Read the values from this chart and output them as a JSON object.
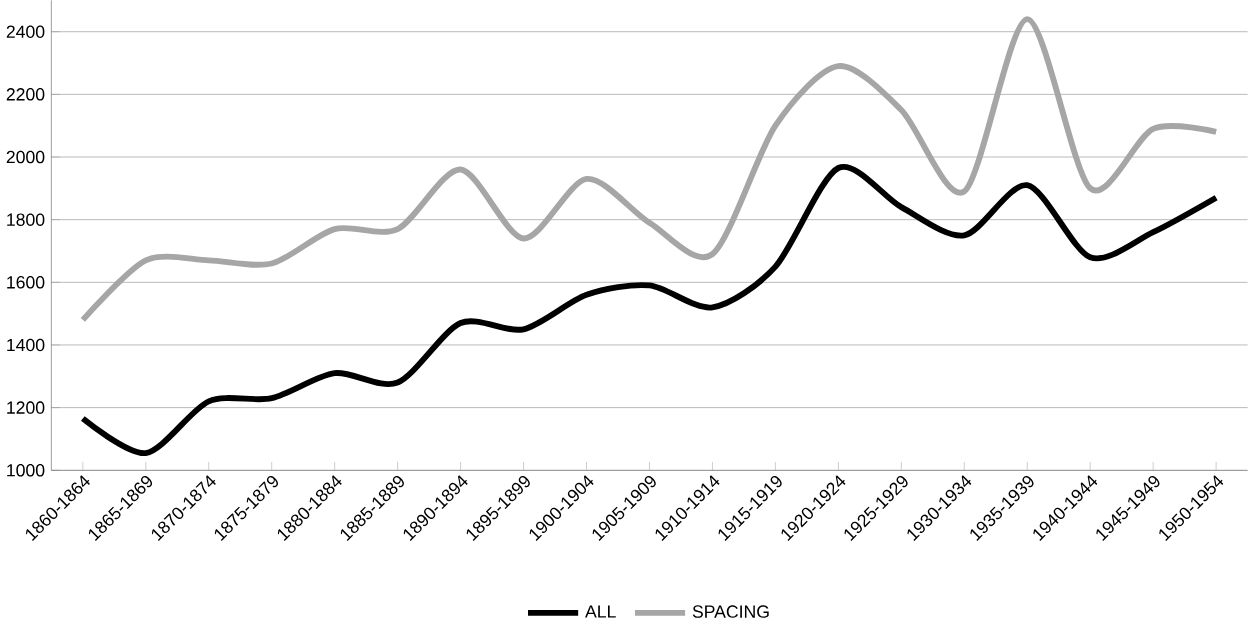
{
  "chart_data": {
    "type": "line",
    "categories": [
      "1860-1864",
      "1865-1869",
      "1870-1874",
      "1875-1879",
      "1880-1884",
      "1885-1889",
      "1890-1894",
      "1895-1899",
      "1900-1904",
      "1905-1909",
      "1910-1914",
      "1915-1919",
      "1920-1924",
      "1925-1929",
      "1930-1934",
      "1935-1939",
      "1940-1944",
      "1945-1949",
      "1950-1954"
    ],
    "series": [
      {
        "name": "ALL",
        "color": "#000000",
        "values": [
          1165,
          1055,
          1220,
          1230,
          1310,
          1280,
          1470,
          1450,
          1560,
          1590,
          1520,
          1650,
          1965,
          1840,
          1750,
          1910,
          1680,
          1760,
          1870
        ]
      },
      {
        "name": "SPACING",
        "color": "#a6a6a6",
        "values": [
          1480,
          1670,
          1670,
          1660,
          1770,
          1770,
          1960,
          1740,
          1930,
          1790,
          1690,
          2100,
          2290,
          2150,
          1890,
          2440,
          1900,
          2090,
          2080
        ]
      }
    ],
    "ylim": [
      1000,
      2500
    ],
    "yticks": [
      1000,
      1200,
      1400,
      1600,
      1800,
      2000,
      2200,
      2400
    ],
    "grid": "y",
    "legend": "bottom",
    "marker": "none",
    "line_style": "solid"
  }
}
